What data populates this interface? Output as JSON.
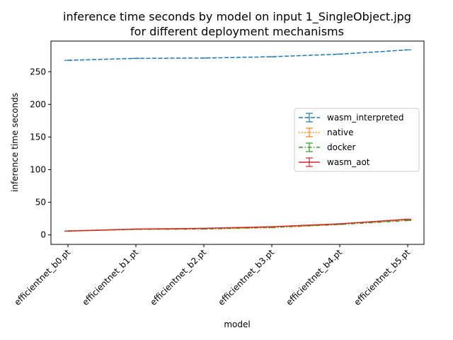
{
  "chart_data": {
    "type": "line",
    "title_line1": "inference time seconds by model on input 1_SingleObject.jpg",
    "title_line2": "for different deployment mechanisms",
    "xlabel": "model",
    "ylabel": "inference time seconds",
    "categories": [
      "efficientnet_b0.pt",
      "efficientnet_b1.pt",
      "efficientnet_b2.pt",
      "efficientnet_b3.pt",
      "efficientnet_b4.pt",
      "efficientnet_b5.pt"
    ],
    "ylim": [
      -14.5,
      297
    ],
    "yticks": [
      0,
      50,
      100,
      150,
      200,
      250
    ],
    "grid": false,
    "legend_position": "center-right",
    "series": [
      {
        "name": "wasm_interpreted",
        "values": [
          267.5,
          270.5,
          271,
          273,
          277,
          283.5
        ],
        "color": "#1f77b4",
        "dash": "6,2.5"
      },
      {
        "name": "native",
        "values": [
          5.5,
          8.5,
          9,
          11,
          16,
          23
        ],
        "color": "#ff7f0e",
        "dash": "1.5,2.5"
      },
      {
        "name": "docker",
        "values": [
          6,
          8.5,
          9,
          11.5,
          16,
          22
        ],
        "color": "#2ca02c",
        "dash": "6,2.5,1.5,2.5"
      },
      {
        "name": "wasm_aot",
        "values": [
          6,
          9,
          10,
          12.5,
          17,
          24
        ],
        "color": "#d62728",
        "dash": ""
      }
    ]
  }
}
